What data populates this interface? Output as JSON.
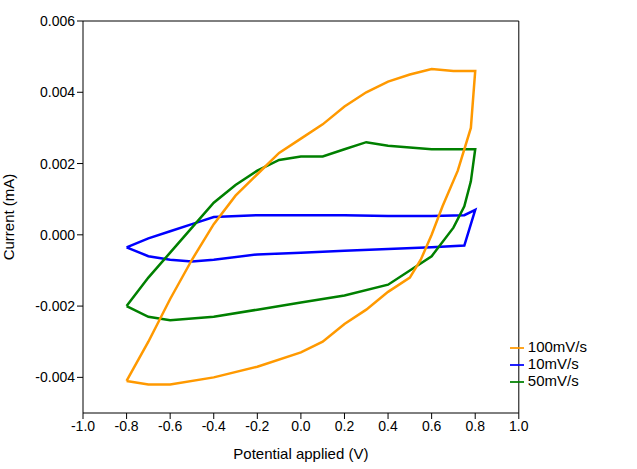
{
  "chart_data": {
    "type": "line",
    "x_label": "Potential applied (V)",
    "y_label": "Current (mA)",
    "xlim": [
      -1.0,
      1.0
    ],
    "xticks": [
      {
        "value": -1.0,
        "label": "-1.0"
      },
      -0.8,
      -0.6,
      -0.4,
      -0.2,
      {
        "value": 0.0,
        "label": "0.0"
      },
      0.2,
      0.4,
      0.6,
      0.8,
      {
        "value": 1.0,
        "label": "1.0"
      }
    ],
    "ylim": [
      -0.005,
      0.006
    ],
    "yticks": [
      -0.004,
      -0.002,
      {
        "value": 0,
        "label": "0.000"
      },
      0.002,
      0.004,
      0.006
    ],
    "grid": false,
    "legend": "lower right",
    "series": [
      {
        "name": "10mV/s",
        "color": "#0000ff",
        "x": [
          -0.8,
          -0.7,
          -0.6,
          -0.5,
          -0.4,
          -0.2,
          0.0,
          0.2,
          0.4,
          0.6,
          0.75,
          0.8,
          0.75,
          0.6,
          0.4,
          0.2,
          0.0,
          -0.2,
          -0.4,
          -0.5,
          -0.6,
          -0.7,
          -0.8
        ],
        "values": [
          -0.00035,
          -0.0001,
          0.0001,
          0.0003,
          0.0005,
          0.00055,
          0.00055,
          0.00055,
          0.00053,
          0.00053,
          0.00055,
          0.0007,
          -0.0003,
          -0.00035,
          -0.0004,
          -0.00045,
          -0.0005,
          -0.00055,
          -0.0007,
          -0.00075,
          -0.0007,
          -0.0006,
          -0.00035
        ]
      },
      {
        "name": "50mV/s",
        "color": "#008000",
        "x": [
          -0.8,
          -0.7,
          -0.6,
          -0.5,
          -0.4,
          -0.3,
          -0.2,
          -0.1,
          0.0,
          0.1,
          0.2,
          0.3,
          0.4,
          0.6,
          0.8,
          0.78,
          0.75,
          0.7,
          0.6,
          0.5,
          0.4,
          0.2,
          0.0,
          -0.2,
          -0.4,
          -0.6,
          -0.7,
          -0.8
        ],
        "values": [
          -0.002,
          -0.0012,
          -0.0005,
          0.0002,
          0.0009,
          0.0014,
          0.0018,
          0.0021,
          0.0022,
          0.0022,
          0.0024,
          0.0026,
          0.0025,
          0.0024,
          0.0024,
          0.0015,
          0.0008,
          0.0002,
          -0.0006,
          -0.001,
          -0.0014,
          -0.0017,
          -0.0019,
          -0.0021,
          -0.0023,
          -0.0024,
          -0.0023,
          -0.002
        ]
      },
      {
        "name": "100mV/s",
        "color": "#ff9900",
        "x": [
          -0.8,
          -0.7,
          -0.6,
          -0.5,
          -0.4,
          -0.3,
          -0.2,
          -0.1,
          0.0,
          0.1,
          0.2,
          0.3,
          0.4,
          0.5,
          0.6,
          0.7,
          0.8,
          0.78,
          0.72,
          0.65,
          0.6,
          0.55,
          0.5,
          0.4,
          0.3,
          0.2,
          0.1,
          0.0,
          -0.2,
          -0.4,
          -0.6,
          -0.7,
          -0.8
        ],
        "values": [
          -0.0041,
          -0.003,
          -0.0018,
          -0.0007,
          0.0003,
          0.0011,
          0.0017,
          0.0023,
          0.0027,
          0.0031,
          0.0036,
          0.004,
          0.0043,
          0.0045,
          0.00465,
          0.0046,
          0.0046,
          0.003,
          0.0018,
          0.0008,
          0.0,
          -0.0007,
          -0.0012,
          -0.0016,
          -0.0021,
          -0.0025,
          -0.003,
          -0.0033,
          -0.0037,
          -0.004,
          -0.0042,
          -0.0042,
          -0.0041
        ]
      }
    ]
  }
}
